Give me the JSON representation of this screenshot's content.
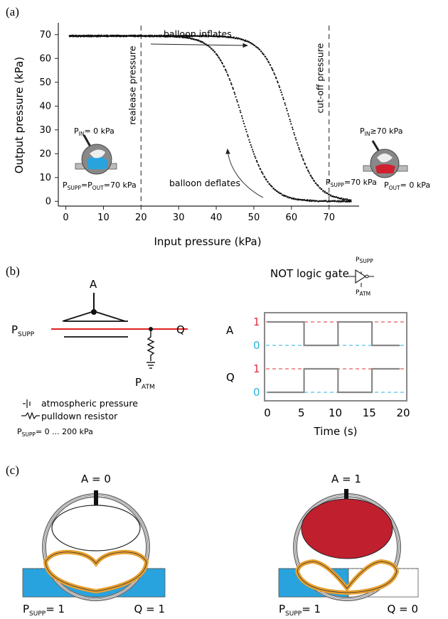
{
  "panels": {
    "a": "(a)",
    "b": "(b)",
    "c": "(c)"
  },
  "chart_data": [
    {
      "type": "scatter",
      "xlabel": "Input pressure (kPa)",
      "ylabel": "Output pressure (kPa)",
      "xlim": [
        -2,
        78
      ],
      "ylim": [
        -2,
        75
      ],
      "x_ticks": [
        "0",
        "10",
        "20",
        "30",
        "40",
        "50",
        "60",
        "70"
      ],
      "y_ticks": [
        "0",
        "10",
        "20",
        "30",
        "40",
        "50",
        "60",
        "70"
      ],
      "vlines": [
        {
          "x": 20,
          "label": "realease pressure"
        },
        {
          "x": 70,
          "label": "cut-off pressure"
        }
      ],
      "series": [
        {
          "name": "balloon inflates",
          "x50": 59.5,
          "slope": 0.3,
          "points": [
            [
              1,
              69.5
            ],
            [
              5,
              69.4
            ],
            [
              10,
              69.3
            ],
            [
              15,
              69.1
            ],
            [
              20,
              68.9
            ],
            [
              25,
              68.5
            ],
            [
              30,
              67.8
            ],
            [
              35,
              66.5
            ],
            [
              40,
              64.5
            ],
            [
              45,
              61
            ],
            [
              50,
              56
            ],
            [
              52,
              53
            ],
            [
              54,
              49
            ],
            [
              56,
              44
            ],
            [
              57,
              41
            ],
            [
              58,
              38
            ],
            [
              59,
              35
            ],
            [
              60,
              32
            ],
            [
              61,
              28
            ],
            [
              62,
              23
            ],
            [
              63,
              18
            ],
            [
              64,
              13
            ],
            [
              65,
              8
            ],
            [
              66,
              4
            ],
            [
              67,
              2
            ],
            [
              68,
              1
            ],
            [
              70,
              0.5
            ],
            [
              72,
              0.3
            ],
            [
              76,
              0.2
            ]
          ]
        },
        {
          "name": "balloon deflates",
          "x50": 47,
          "slope": 0.3,
          "points": [
            [
              76,
              0.2
            ],
            [
              70,
              0.5
            ],
            [
              66,
              0.8
            ],
            [
              62,
              1.3
            ],
            [
              58,
              2.5
            ],
            [
              55,
              4
            ],
            [
              52,
              8
            ],
            [
              50,
              13
            ],
            [
              49,
              18
            ],
            [
              48,
              24
            ],
            [
              47,
              30
            ],
            [
              46,
              36
            ],
            [
              45,
              42
            ],
            [
              44,
              49
            ],
            [
              43,
              54
            ],
            [
              42,
              58
            ],
            [
              40,
              63
            ],
            [
              38,
              65
            ],
            [
              35,
              67
            ],
            [
              30,
              68
            ],
            [
              25,
              68.5
            ],
            [
              20,
              68.9
            ],
            [
              10,
              69.3
            ],
            [
              1,
              69.5
            ]
          ]
        }
      ],
      "annotations": {
        "inflate": "balloon inflates",
        "deflate": "balloon deflates",
        "left_pin": "P",
        "left_pin_sub": "IN",
        "left_pin_val": "= 0 kPa",
        "left_bottom": "P",
        "left_bottom_sub1": "SUPP",
        "left_bottom_mid": "=P",
        "left_bottom_sub2": "OUT",
        "left_bottom_val": "=70 kPa",
        "right_pin": "P",
        "right_pin_sub": "IN",
        "right_pin_val": "≥70 kPa",
        "right_supp": "P",
        "right_supp_sub": "SUPP",
        "right_supp_val": "=70 kPa",
        "right_out": "P",
        "right_out_sub": "OUT",
        "right_out_val": "= 0 kPa"
      },
      "colors": {
        "points": "#111111",
        "lines": "#444444"
      }
    },
    {
      "type": "line",
      "title": "NOT logic gate",
      "xlabel": "Time (s)",
      "x_ticks": [
        "0",
        "5",
        "10",
        "15",
        "20"
      ],
      "xlim": [
        0,
        20
      ],
      "rows": [
        {
          "name": "A",
          "high": "1",
          "low": "0",
          "segments": [
            [
              0,
              5.4,
              1
            ],
            [
              5.4,
              10.4,
              0
            ],
            [
              10.4,
              15.4,
              1
            ],
            [
              15.4,
              19.5,
              0
            ]
          ]
        },
        {
          "name": "Q",
          "high": "1",
          "low": "0",
          "segments": [
            [
              0,
              5.4,
              0
            ],
            [
              5.4,
              10.4,
              1
            ],
            [
              10.4,
              15.4,
              0
            ],
            [
              15.4,
              19.5,
              1
            ]
          ]
        }
      ],
      "colors": {
        "signal": "#888888",
        "high": "#e0303a",
        "low": "#29b3dd"
      }
    }
  ],
  "circuit": {
    "input": "A",
    "supply": "P",
    "supply_sub": "SUPP",
    "output": "Q",
    "ground": "P",
    "ground_sub": "ATM",
    "gate_top": "P",
    "gate_top_sub": "SUPP",
    "gate_bottom": "P",
    "gate_bottom_sub": "ATM",
    "legend": [
      {
        "icon": "ground-icon",
        "label": "atmospheric pressure"
      },
      {
        "icon": "resistor-icon",
        "label": "pulldown resistor"
      }
    ],
    "range_p": "P",
    "range_sub": "SUPP",
    "range_val": "= 0 ... 200 kPa",
    "colors": {
      "supply_line": "#e02020"
    }
  },
  "panel_c": {
    "left": {
      "title": "A = 0",
      "supp": "P",
      "supp_sub": "SUPP",
      "supp_val": "= 1",
      "q": "Q = 1"
    },
    "right": {
      "title": "A = 1",
      "supp": "P",
      "supp_sub": "SUPP",
      "supp_val": "= 1",
      "q": "Q = 0"
    },
    "colors": {
      "channel": "#29a3dd",
      "balloon": "#c0202e",
      "membrane": "#e8a030"
    }
  }
}
